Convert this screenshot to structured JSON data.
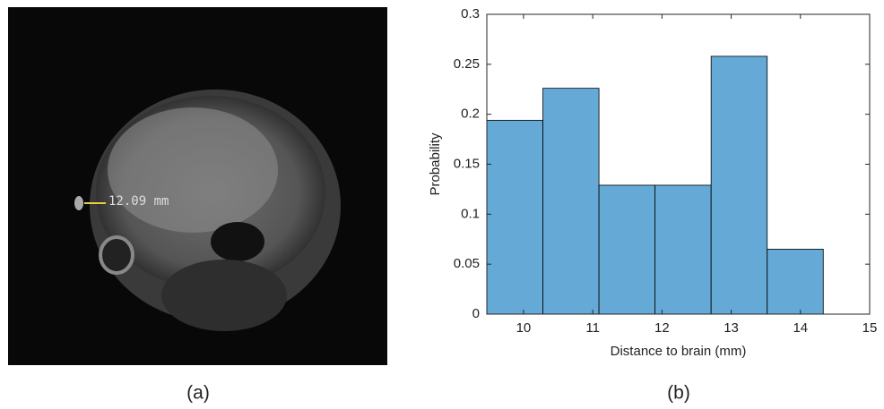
{
  "panels": {
    "a": {
      "label": "(a)",
      "annotation": "12.09 mm"
    },
    "b": {
      "label": "(b)"
    }
  },
  "chart_data": {
    "type": "histogram",
    "xlabel": "Distance to brain (mm)",
    "ylabel": "Probability",
    "bins": [
      9.47,
      10.28,
      11.09,
      11.9,
      12.71,
      13.52,
      14.33
    ],
    "values": [
      0.194,
      0.226,
      0.129,
      0.129,
      0.258,
      0.065
    ],
    "color": "#65a9d7",
    "edgecolor": "#000000",
    "xlim": [
      9.47,
      15
    ],
    "xticks": [
      10,
      11,
      12,
      13,
      14,
      15
    ],
    "ylim": [
      0,
      0.3
    ],
    "yticks": [
      0,
      0.05,
      0.1,
      0.15,
      0.2,
      0.25,
      0.3
    ],
    "grid": false
  }
}
